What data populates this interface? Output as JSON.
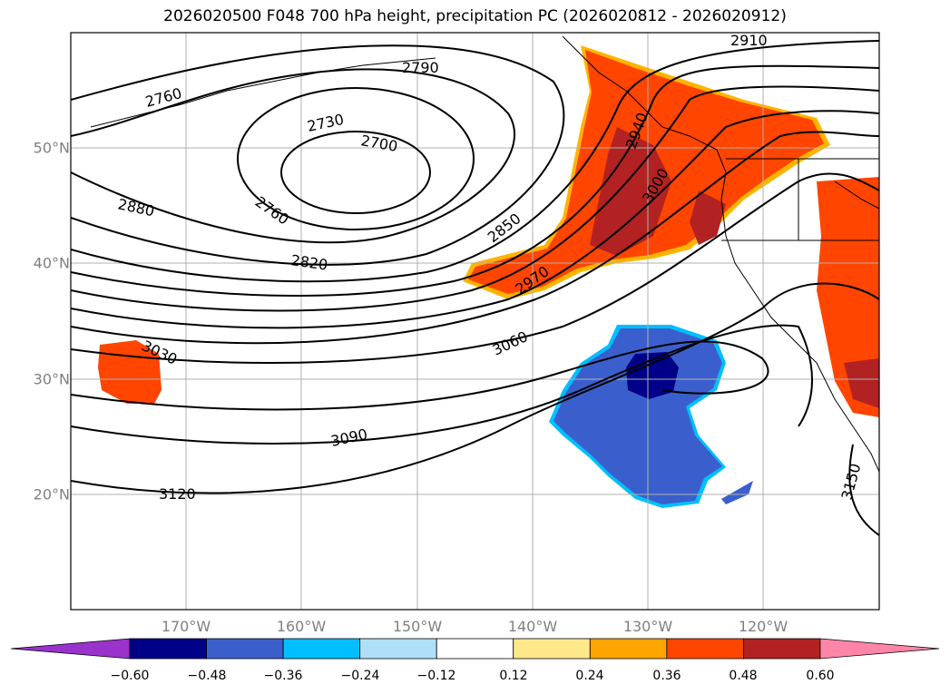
{
  "title": "2026020500 F048 700 hPa height, precipitation PC (2026020812 - 2026020912)",
  "longitude_labels": [
    "170°W",
    "160°W",
    "150°W",
    "140°W",
    "130°W",
    "120°W"
  ],
  "latitude_labels": [
    "50°N",
    "40°N",
    "30°N",
    "20°N"
  ],
  "contour_labels": [
    "2910",
    "2790",
    "2760",
    "2730",
    "2700",
    "2940",
    "3000",
    "2880",
    "2760",
    "2850",
    "2820",
    "2970",
    "3030",
    "3060",
    "3090",
    "3120",
    "3150"
  ],
  "colorbar": {
    "ticks": [
      "−0.60",
      "−0.48",
      "−0.36",
      "−0.24",
      "−0.12",
      "0.12",
      "0.24",
      "0.36",
      "0.48",
      "0.60"
    ],
    "colors": [
      "#9933cc",
      "#000088",
      "#3a5fcd",
      "#00bfff",
      "#b0e0f8",
      "#ffffff",
      "#ffe88a",
      "#ffa500",
      "#ff4500",
      "#b22222",
      "#ff85a8"
    ]
  },
  "colors": {
    "contour": "#000000",
    "grid": "#b0b0b0",
    "coast": "#000000",
    "axis_labels": "#808080"
  }
}
